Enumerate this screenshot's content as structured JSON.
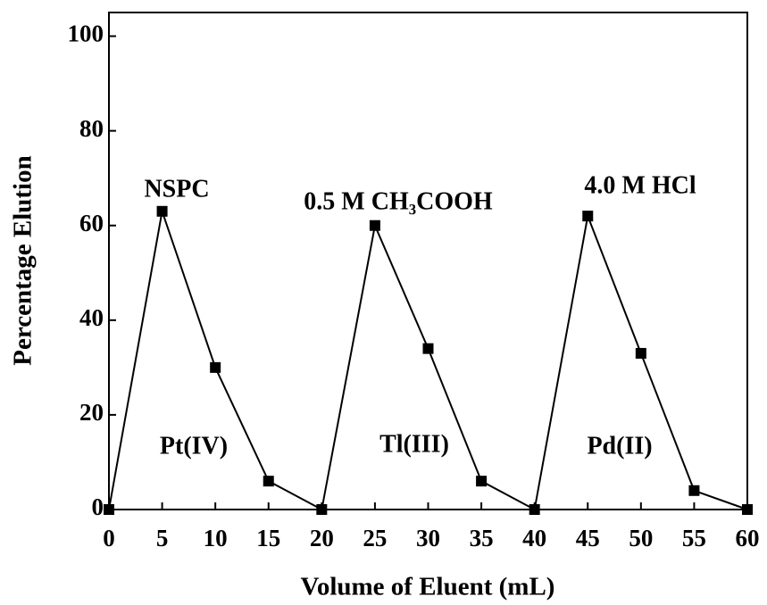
{
  "chart_data": {
    "type": "line",
    "x_label": "Volume of Eluent (mL)",
    "y_label": "Percentage Elution",
    "x": [
      0,
      5,
      10,
      15,
      20,
      25,
      30,
      35,
      40,
      45,
      50,
      55,
      60
    ],
    "series": [
      {
        "color": "#000000",
        "values": [
          0,
          63,
          30,
          6,
          0,
          60,
          34,
          6,
          0,
          62,
          33,
          4,
          0
        ]
      }
    ],
    "xlim": [
      0,
      60
    ],
    "xticks": [
      0,
      5,
      10,
      15,
      20,
      25,
      30,
      35,
      40,
      45,
      50,
      55,
      60
    ],
    "ylim": [
      0,
      105
    ],
    "yticks": [
      0,
      20,
      40,
      60,
      80,
      100
    ],
    "annotations": [
      "NSPC",
      "0.5 M CH₃COOH",
      "4.0 M HCl",
      "Pt(IV)",
      "Tl(III)",
      "Pd(II)"
    ]
  }
}
